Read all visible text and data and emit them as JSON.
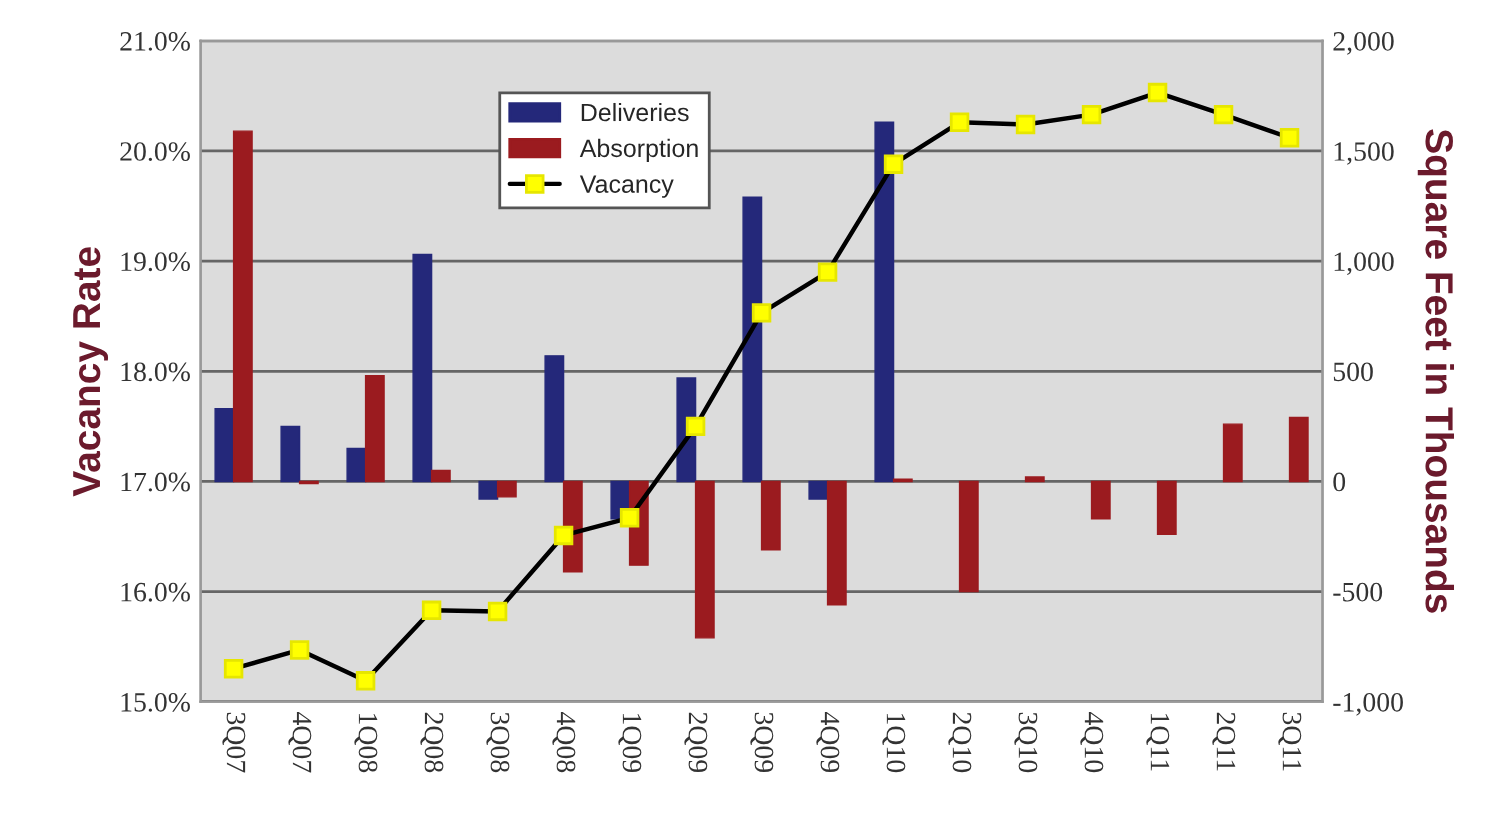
{
  "chart_data": {
    "type": "bar",
    "ylabel": "Vacancy Rate",
    "y2label": "Square Feet in Thousands",
    "categories": [
      "3Q07",
      "4Q07",
      "1Q08",
      "2Q08",
      "3Q08",
      "4Q08",
      "1Q09",
      "2Q09",
      "3Q09",
      "4Q09",
      "1Q10",
      "2Q10",
      "3Q10",
      "4Q10",
      "1Q11",
      "2Q11",
      "3Q11"
    ],
    "series": [
      {
        "name": "Deliveries",
        "axis": "y2",
        "color": "#24287a",
        "values": [
          330,
          250,
          150,
          1030,
          -80,
          570,
          -170,
          470,
          1290,
          -80,
          1630,
          null,
          null,
          null,
          null,
          null,
          null
        ]
      },
      {
        "name": "Absorption",
        "axis": "y2",
        "color": "#9b1b1f",
        "values": [
          1590,
          -10,
          480,
          50,
          -70,
          -410,
          -380,
          -710,
          -310,
          -560,
          10,
          -500,
          20,
          -170,
          -240,
          260,
          290
        ]
      },
      {
        "name": "Vacancy",
        "type": "line",
        "axis": "y",
        "color": "#000000",
        "marker": "square",
        "values": [
          15.3,
          15.47,
          15.19,
          15.83,
          15.82,
          16.51,
          16.67,
          17.5,
          18.53,
          18.9,
          19.88,
          20.26,
          20.24,
          20.33,
          20.53,
          20.33,
          20.12
        ]
      }
    ],
    "ylim": [
      15.0,
      21.0
    ],
    "yticks": [
      {
        "value": 15.0,
        "label": "15.0%"
      },
      {
        "value": 16.0,
        "label": "16.0%"
      },
      {
        "value": 17.0,
        "label": "17.0%"
      },
      {
        "value": 18.0,
        "label": "18.0%"
      },
      {
        "value": 19.0,
        "label": "19.0%"
      },
      {
        "value": 20.0,
        "label": "20.0%"
      },
      {
        "value": 21.0,
        "label": "21.0%"
      }
    ],
    "y2lim": [
      -1000,
      2000
    ],
    "y2ticks": [
      {
        "value": -1000,
        "label": "-1,000"
      },
      {
        "value": -500,
        "label": "-500"
      },
      0,
      500,
      {
        "value": 1000,
        "label": "1,000"
      },
      {
        "value": 1500,
        "label": "1,500"
      },
      {
        "value": 2000,
        "label": "2,000"
      }
    ],
    "grid": "y",
    "legend": "top"
  }
}
